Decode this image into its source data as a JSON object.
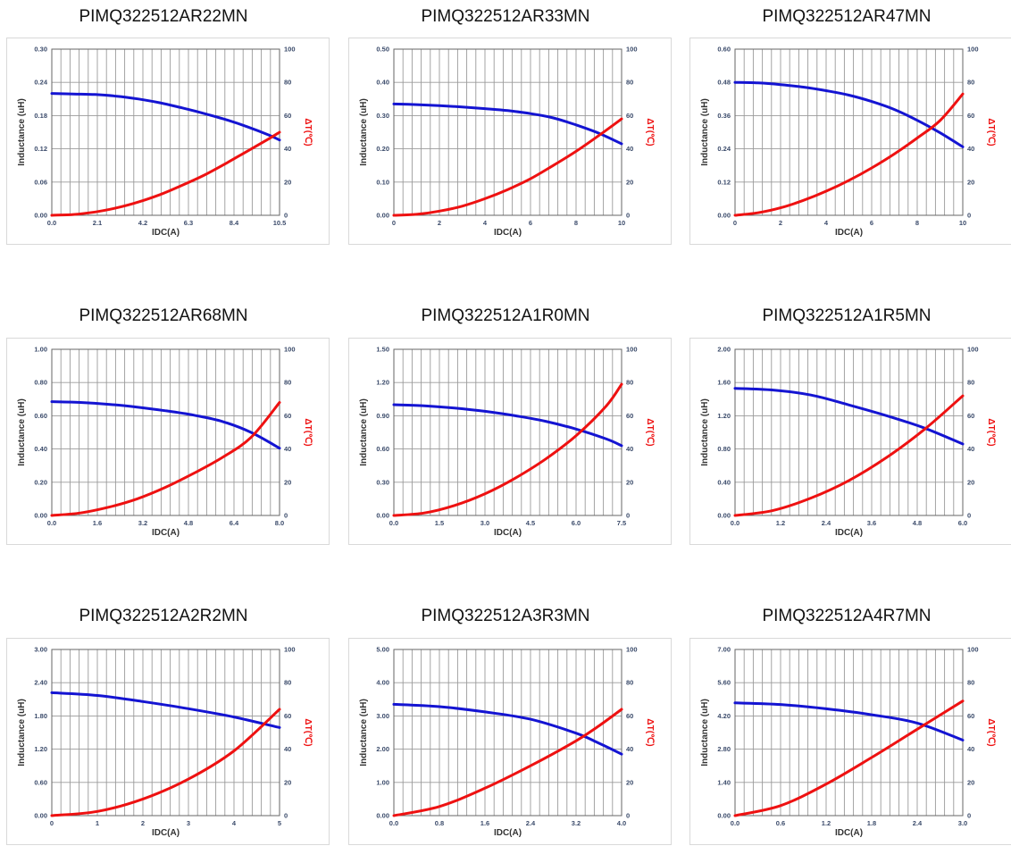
{
  "chart_data": [
    {
      "type": "line",
      "title": "PIMQ322512AR22MN",
      "xlabel": "IDC(A)",
      "ylabel": "Inductance (uH)",
      "ylabel2": "ΔT(℃)",
      "xlim": [
        0,
        10.5
      ],
      "xticks": [
        "0.0",
        "2.1",
        "4.2",
        "6.3",
        "8.4",
        "10.5"
      ],
      "ylim": [
        0,
        0.3
      ],
      "yticks": [
        "0.00",
        "0.06",
        "0.12",
        "0.18",
        "0.24",
        "0.30"
      ],
      "y2lim": [
        0,
        100
      ],
      "y2ticks": [
        "0",
        "20",
        "40",
        "60",
        "80",
        "100"
      ],
      "series": [
        {
          "name": "Inductance",
          "axis": "left",
          "color": "#1414d2",
          "x": [
            0,
            1,
            2,
            3,
            4,
            5,
            6,
            7,
            8,
            9,
            10,
            10.5
          ],
          "y": [
            0.22,
            0.219,
            0.218,
            0.215,
            0.21,
            0.203,
            0.194,
            0.184,
            0.173,
            0.16,
            0.145,
            0.136
          ]
        },
        {
          "name": "ΔT",
          "axis": "right",
          "color": "#ee1111",
          "x": [
            0,
            1,
            2,
            3,
            4,
            5,
            6,
            7,
            8,
            9,
            10,
            10.5
          ],
          "y": [
            0,
            0.5,
            2,
            4.5,
            8,
            12.5,
            18,
            24,
            31,
            38.5,
            46,
            50
          ]
        }
      ]
    },
    {
      "type": "line",
      "title": "PIMQ322512AR33MN",
      "xlabel": "IDC(A)",
      "ylabel": "Inductance (uH)",
      "ylabel2": "ΔT(℃)",
      "xlim": [
        0,
        10
      ],
      "xticks": [
        "0",
        "2",
        "4",
        "6",
        "8",
        "10"
      ],
      "ylim": [
        0,
        0.5
      ],
      "yticks": [
        "0.00",
        "0.10",
        "0.20",
        "0.30",
        "0.40",
        "0.50"
      ],
      "y2lim": [
        0,
        100
      ],
      "y2ticks": [
        "0",
        "20",
        "40",
        "60",
        "80",
        "100"
      ],
      "series": [
        {
          "name": "Inductance",
          "axis": "left",
          "color": "#1414d2",
          "x": [
            0,
            1,
            2,
            3,
            4,
            5,
            6,
            7,
            8,
            9,
            10
          ],
          "y": [
            0.335,
            0.333,
            0.33,
            0.326,
            0.321,
            0.315,
            0.306,
            0.293,
            0.272,
            0.247,
            0.215
          ]
        },
        {
          "name": "ΔT",
          "axis": "right",
          "color": "#ee1111",
          "x": [
            0,
            1,
            2,
            3,
            4,
            5,
            6,
            7,
            8,
            9,
            10
          ],
          "y": [
            0,
            0.6,
            2.5,
            5.5,
            10,
            15.5,
            22,
            30,
            38.5,
            48,
            58
          ]
        }
      ]
    },
    {
      "type": "line",
      "title": "PIMQ322512AR47MN",
      "xlabel": "IDC(A)",
      "ylabel": "Inductance (uH)",
      "ylabel2": "ΔT(℃)",
      "xlim": [
        0,
        10
      ],
      "xticks": [
        "0",
        "2",
        "4",
        "6",
        "8",
        "10"
      ],
      "ylim": [
        0,
        0.6
      ],
      "yticks": [
        "0.00",
        "0.12",
        "0.24",
        "0.36",
        "0.48",
        "0.60"
      ],
      "y2lim": [
        0,
        100
      ],
      "y2ticks": [
        "0",
        "20",
        "40",
        "60",
        "80",
        "100"
      ],
      "series": [
        {
          "name": "Inductance",
          "axis": "left",
          "color": "#1414d2",
          "x": [
            0,
            1,
            2,
            3,
            4,
            5,
            6,
            7,
            8,
            9,
            10
          ],
          "y": [
            0.48,
            0.478,
            0.472,
            0.463,
            0.45,
            0.434,
            0.411,
            0.382,
            0.343,
            0.298,
            0.247
          ]
        },
        {
          "name": "ΔT",
          "axis": "right",
          "color": "#ee1111",
          "x": [
            0,
            1,
            2,
            3,
            4,
            5,
            6,
            7,
            8,
            9,
            10
          ],
          "y": [
            0,
            1.5,
            4.5,
            9,
            14.5,
            21,
            28.5,
            37,
            46.5,
            57,
            73
          ]
        }
      ]
    },
    {
      "type": "line",
      "title": "PIMQ322512AR68MN",
      "xlabel": "IDC(A)",
      "ylabel": "Inductance (uH)",
      "ylabel2": "ΔT(℃)",
      "xlim": [
        0,
        8
      ],
      "xticks": [
        "0.0",
        "1.6",
        "3.2",
        "4.8",
        "6.4",
        "8.0"
      ],
      "ylim": [
        0,
        1.0
      ],
      "yticks": [
        "0.00",
        "0.20",
        "0.40",
        "0.60",
        "0.80",
        "1.00"
      ],
      "y2lim": [
        0,
        100
      ],
      "y2ticks": [
        "0",
        "20",
        "40",
        "60",
        "80",
        "100"
      ],
      "series": [
        {
          "name": "Inductance",
          "axis": "left",
          "color": "#1414d2",
          "x": [
            0,
            1,
            2,
            3,
            4,
            5,
            6,
            7,
            8
          ],
          "y": [
            0.685,
            0.68,
            0.669,
            0.652,
            0.63,
            0.603,
            0.565,
            0.5,
            0.405
          ]
        },
        {
          "name": "ΔT",
          "axis": "right",
          "color": "#ee1111",
          "x": [
            0,
            1,
            2,
            3,
            4,
            5,
            6,
            7,
            8
          ],
          "y": [
            0,
            1.5,
            5,
            10,
            17,
            25.5,
            35,
            47,
            68
          ]
        }
      ]
    },
    {
      "type": "line",
      "title": "PIMQ322512A1R0MN",
      "xlabel": "IDC(A)",
      "ylabel": "Inductance (uH)",
      "ylabel2": "ΔT(℃)",
      "xlim": [
        0,
        7.5
      ],
      "xticks": [
        "0.0",
        "1.5",
        "3.0",
        "4.5",
        "6.0",
        "7.5"
      ],
      "ylim": [
        0,
        1.5
      ],
      "yticks": [
        "0.00",
        "0.30",
        "0.60",
        "0.90",
        "1.20",
        "1.50"
      ],
      "y2lim": [
        0,
        100
      ],
      "y2ticks": [
        "0",
        "20",
        "40",
        "60",
        "80",
        "100"
      ],
      "series": [
        {
          "name": "Inductance",
          "axis": "left",
          "color": "#1414d2",
          "x": [
            0,
            1,
            2,
            3,
            4,
            5,
            6,
            7,
            7.5
          ],
          "y": [
            1.0,
            0.99,
            0.97,
            0.94,
            0.9,
            0.85,
            0.78,
            0.69,
            0.63
          ]
        },
        {
          "name": "ΔT",
          "axis": "right",
          "color": "#ee1111",
          "x": [
            0,
            1,
            2,
            3,
            4,
            5,
            6,
            7,
            7.5
          ],
          "y": [
            0,
            1.5,
            6,
            13,
            22.5,
            34,
            48,
            66,
            79
          ]
        }
      ]
    },
    {
      "type": "line",
      "title": "PIMQ322512A1R5MN",
      "xlabel": "IDC(A)",
      "ylabel": "Inductance (uH)",
      "ylabel2": "ΔT(℃)",
      "xlim": [
        0,
        6
      ],
      "xticks": [
        "0.0",
        "1.2",
        "2.4",
        "3.6",
        "4.8",
        "6.0"
      ],
      "ylim": [
        0,
        2.0
      ],
      "yticks": [
        "0.00",
        "0.40",
        "0.80",
        "1.20",
        "1.60",
        "2.00"
      ],
      "y2lim": [
        0,
        100
      ],
      "y2ticks": [
        "0",
        "20",
        "40",
        "60",
        "80",
        "100"
      ],
      "series": [
        {
          "name": "Inductance",
          "axis": "left",
          "color": "#1414d2",
          "x": [
            0,
            1,
            2,
            3,
            4,
            5,
            6
          ],
          "y": [
            1.53,
            1.51,
            1.45,
            1.33,
            1.2,
            1.05,
            0.86
          ]
        },
        {
          "name": "ΔT",
          "axis": "right",
          "color": "#ee1111",
          "x": [
            0,
            1,
            2,
            3,
            4,
            5,
            6
          ],
          "y": [
            0,
            3,
            10.5,
            21,
            35,
            52,
            72
          ]
        }
      ]
    },
    {
      "type": "line",
      "title": "PIMQ322512A2R2MN",
      "xlabel": "IDC(A)",
      "ylabel": "Inductance (uH)",
      "ylabel2": "ΔT(℃)",
      "xlim": [
        0,
        5
      ],
      "xticks": [
        "0",
        "1",
        "2",
        "3",
        "4",
        "5"
      ],
      "ylim": [
        0,
        3.0
      ],
      "yticks": [
        "0.00",
        "0.60",
        "1.20",
        "1.80",
        "2.40",
        "3.00"
      ],
      "y2lim": [
        0,
        100
      ],
      "y2ticks": [
        "0",
        "20",
        "40",
        "60",
        "80",
        "100"
      ],
      "series": [
        {
          "name": "Inductance",
          "axis": "left",
          "color": "#1414d2",
          "x": [
            0,
            1,
            2,
            3,
            4,
            5
          ],
          "y": [
            2.22,
            2.17,
            2.06,
            1.93,
            1.78,
            1.59
          ]
        },
        {
          "name": "ΔT",
          "axis": "right",
          "color": "#ee1111",
          "x": [
            0,
            1,
            2,
            3,
            4,
            5
          ],
          "y": [
            0,
            2.5,
            10,
            22,
            39,
            64
          ]
        }
      ]
    },
    {
      "type": "line",
      "title": "PIMQ322512A3R3MN",
      "xlabel": "IDC(A)",
      "ylabel": "Inductance (uH)",
      "ylabel2": "ΔT(℃)",
      "xlim": [
        0,
        4
      ],
      "xticks": [
        "0.0",
        "0.8",
        "1.6",
        "2.4",
        "3.2",
        "4.0"
      ],
      "ylim": [
        0,
        5.0
      ],
      "yticks": [
        "0.00",
        "1.00",
        "2.00",
        "3.00",
        "4.00",
        "5.00"
      ],
      "y2lim": [
        0,
        100
      ],
      "y2ticks": [
        "0",
        "20",
        "40",
        "60",
        "80",
        "100"
      ],
      "series": [
        {
          "name": "Inductance",
          "axis": "left",
          "color": "#1414d2",
          "x": [
            0,
            0.8,
            1.6,
            2.4,
            3.2,
            3.6,
            4.0
          ],
          "y": [
            3.35,
            3.28,
            3.12,
            2.9,
            2.48,
            2.18,
            1.85
          ]
        },
        {
          "name": "ΔT",
          "axis": "right",
          "color": "#ee1111",
          "x": [
            0,
            0.8,
            1.6,
            2.4,
            3.2,
            3.6,
            4.0
          ],
          "y": [
            0,
            5.5,
            16.5,
            30,
            45,
            54,
            64
          ]
        }
      ]
    },
    {
      "type": "line",
      "title": "PIMQ322512A4R7MN",
      "xlabel": "IDC(A)",
      "ylabel": "Inductance (uH)",
      "ylabel2": "ΔT(℃)",
      "xlim": [
        0,
        3
      ],
      "xticks": [
        "0.0",
        "0.6",
        "1.2",
        "1.8",
        "2.4",
        "3.0"
      ],
      "ylim": [
        0,
        7.0
      ],
      "yticks": [
        "0.00",
        "1.40",
        "2.80",
        "4.20",
        "5.60",
        "7.00"
      ],
      "y2lim": [
        0,
        100
      ],
      "y2ticks": [
        "0",
        "20",
        "40",
        "60",
        "80",
        "100"
      ],
      "series": [
        {
          "name": "Inductance",
          "axis": "left",
          "color": "#1414d2",
          "x": [
            0,
            0.6,
            1.2,
            1.8,
            2.4,
            3.0
          ],
          "y": [
            4.75,
            4.68,
            4.5,
            4.25,
            3.9,
            3.18
          ]
        },
        {
          "name": "ΔT",
          "axis": "right",
          "color": "#ee1111",
          "x": [
            0,
            0.6,
            1.2,
            1.8,
            2.4,
            3.0
          ],
          "y": [
            0,
            6,
            19,
            35,
            52,
            69
          ]
        }
      ]
    }
  ]
}
